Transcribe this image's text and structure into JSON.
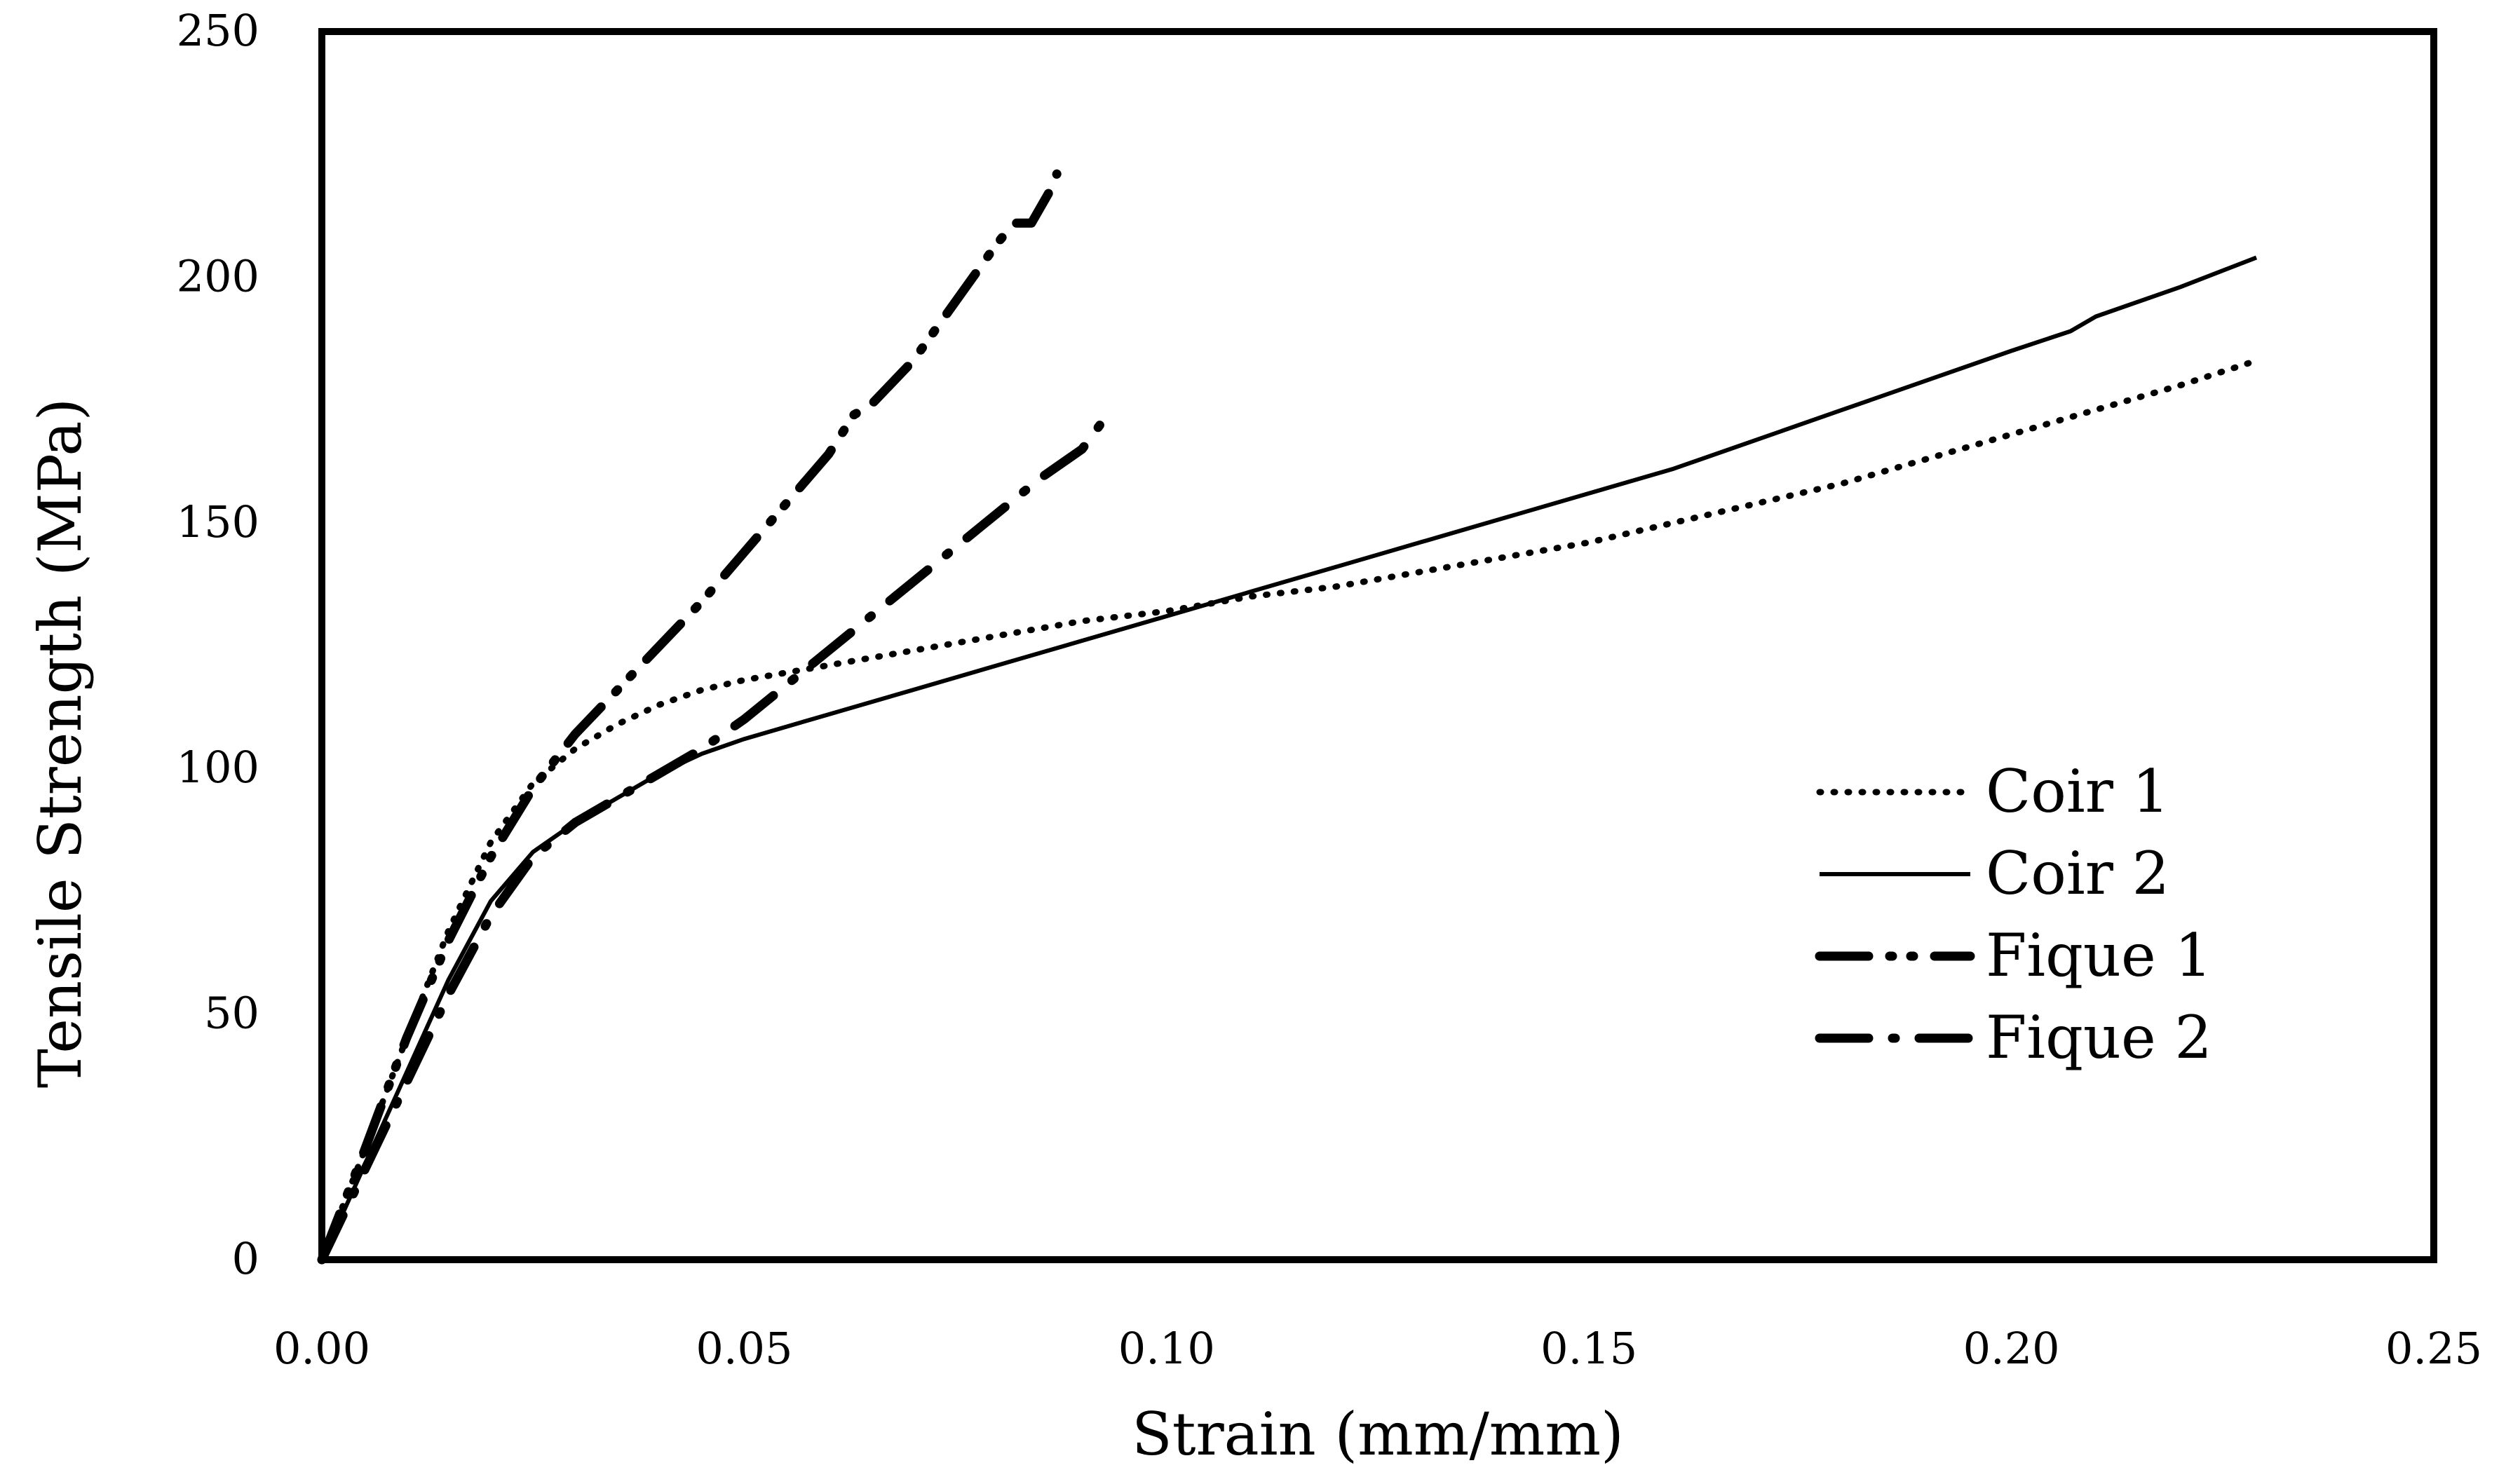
{
  "chart_data": {
    "type": "line",
    "xlabel": "Strain (mm/mm)",
    "ylabel": "Tensile Strength (MPa)",
    "xlim": [
      0,
      0.25
    ],
    "ylim": [
      0,
      250
    ],
    "xticks": [
      "0.00",
      "0.05",
      "0.10",
      "0.15",
      "0.20",
      "0.25"
    ],
    "yticks": [
      "0",
      "50",
      "100",
      "150",
      "200",
      "250"
    ],
    "grid": false,
    "legend_position": "right",
    "series": [
      {
        "name": "Coir 1",
        "style": "dotted",
        "x": [
          0,
          0.005,
          0.01,
          0.015,
          0.02,
          0.025,
          0.03,
          0.035,
          0.04,
          0.045,
          0.05,
          0.06,
          0.07,
          0.08,
          0.09,
          0.1,
          0.11,
          0.12,
          0.13,
          0.14,
          0.15,
          0.16,
          0.17,
          0.18,
          0.19,
          0.2,
          0.21,
          0.22,
          0.229
        ],
        "values": [
          0,
          22,
          45,
          67,
          85,
          97,
          104,
          109,
          113,
          116,
          118,
          121,
          124,
          127,
          130,
          132,
          135,
          137,
          140,
          143,
          146,
          150,
          154,
          158,
          163,
          168,
          173,
          178,
          183
        ]
      },
      {
        "name": "Coir 2",
        "style": "solid",
        "x": [
          0,
          0.005,
          0.01,
          0.015,
          0.02,
          0.025,
          0.03,
          0.035,
          0.04,
          0.045,
          0.05,
          0.06,
          0.07,
          0.08,
          0.09,
          0.1,
          0.11,
          0.12,
          0.13,
          0.14,
          0.15,
          0.16,
          0.17,
          0.18,
          0.19,
          0.2,
          0.207,
          0.21,
          0.22,
          0.229
        ],
        "values": [
          0,
          19,
          38,
          57,
          73,
          83,
          89,
          94,
          99,
          103,
          106,
          111,
          116,
          121,
          126,
          131,
          136,
          141,
          146,
          151,
          156,
          161,
          167,
          173,
          179,
          185,
          189,
          192,
          198,
          204
        ]
      },
      {
        "name": "Fique 1",
        "style": "long-dash-dot-dot",
        "x": [
          0,
          0.005,
          0.01,
          0.015,
          0.02,
          0.025,
          0.03,
          0.035,
          0.04,
          0.045,
          0.05,
          0.055,
          0.06,
          0.063,
          0.065,
          0.07,
          0.075,
          0.08,
          0.082,
          0.084,
          0.086,
          0.087
        ],
        "values": [
          0,
          22,
          45,
          65,
          82,
          96,
          107,
          116,
          125,
          134,
          144,
          154,
          164,
          172,
          174,
          183,
          195,
          207,
          211,
          211,
          217,
          221
        ]
      },
      {
        "name": "Fique 2",
        "style": "long-dash-dot",
        "x": [
          0,
          0.005,
          0.01,
          0.015,
          0.02,
          0.025,
          0.03,
          0.035,
          0.04,
          0.045,
          0.05,
          0.055,
          0.06,
          0.065,
          0.07,
          0.075,
          0.08,
          0.085,
          0.09,
          0.093
        ],
        "values": [
          0,
          18,
          36,
          54,
          70,
          82,
          89,
          94,
          99,
          104,
          110,
          117,
          124,
          131,
          138,
          145,
          152,
          159,
          165,
          172
        ]
      }
    ]
  }
}
